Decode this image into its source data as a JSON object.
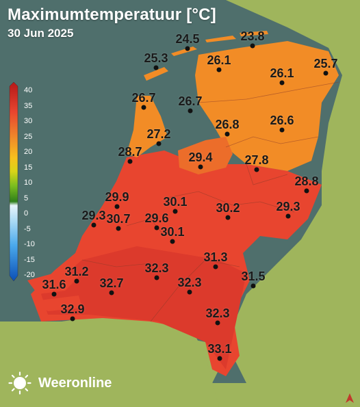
{
  "header": {
    "title": "Maximumtemperatuur [°C]",
    "date": "30 Jun 2025"
  },
  "legend": {
    "ticks": [
      "40",
      "35",
      "30",
      "25",
      "20",
      "15",
      "10",
      "5",
      "0",
      "-5",
      "-10",
      "-15",
      "-20"
    ],
    "colors": [
      "#c21c1c",
      "#e8452f",
      "#ef6a2c",
      "#f28c26",
      "#f7b41f",
      "#f0dc1a",
      "#9ccd18",
      "#5d9e22",
      "#2f7f1b",
      "#cfe9f6",
      "#8fcdf2",
      "#4aa9ec",
      "#1a78d8",
      "#0b4fb5"
    ]
  },
  "colors": {
    "sea": "#4f6f6c",
    "land_neighbor": "#9fb55c",
    "hot": "#e8452f",
    "warm": "#f28c26"
  },
  "cities": [
    {
      "value": "24.5"
    },
    {
      "value": "23.8"
    },
    {
      "value": "25.3"
    },
    {
      "value": "26.1"
    },
    {
      "value": "25.7"
    },
    {
      "value": "26.1"
    },
    {
      "value": "26.7"
    },
    {
      "value": "26.7"
    },
    {
      "value": "27.2"
    },
    {
      "value": "26.8"
    },
    {
      "value": "26.6"
    },
    {
      "value": "28.7"
    },
    {
      "value": "29.4"
    },
    {
      "value": "27.8"
    },
    {
      "value": "28.8"
    },
    {
      "value": "29.9"
    },
    {
      "value": "30.1"
    },
    {
      "value": "30.2"
    },
    {
      "value": "29.3"
    },
    {
      "value": "29.3"
    },
    {
      "value": "30.7"
    },
    {
      "value": "29.6"
    },
    {
      "value": "30.1"
    },
    {
      "value": "31.3"
    },
    {
      "value": "31.2"
    },
    {
      "value": "32.3"
    },
    {
      "value": "31.5"
    },
    {
      "value": "31.6"
    },
    {
      "value": "32.7"
    },
    {
      "value": "32.3"
    },
    {
      "value": "32.9"
    },
    {
      "value": "32.3"
    },
    {
      "value": "33.1"
    }
  ],
  "brand": {
    "name": "Weeronline",
    "logo_icon": "sun-logo-icon"
  }
}
